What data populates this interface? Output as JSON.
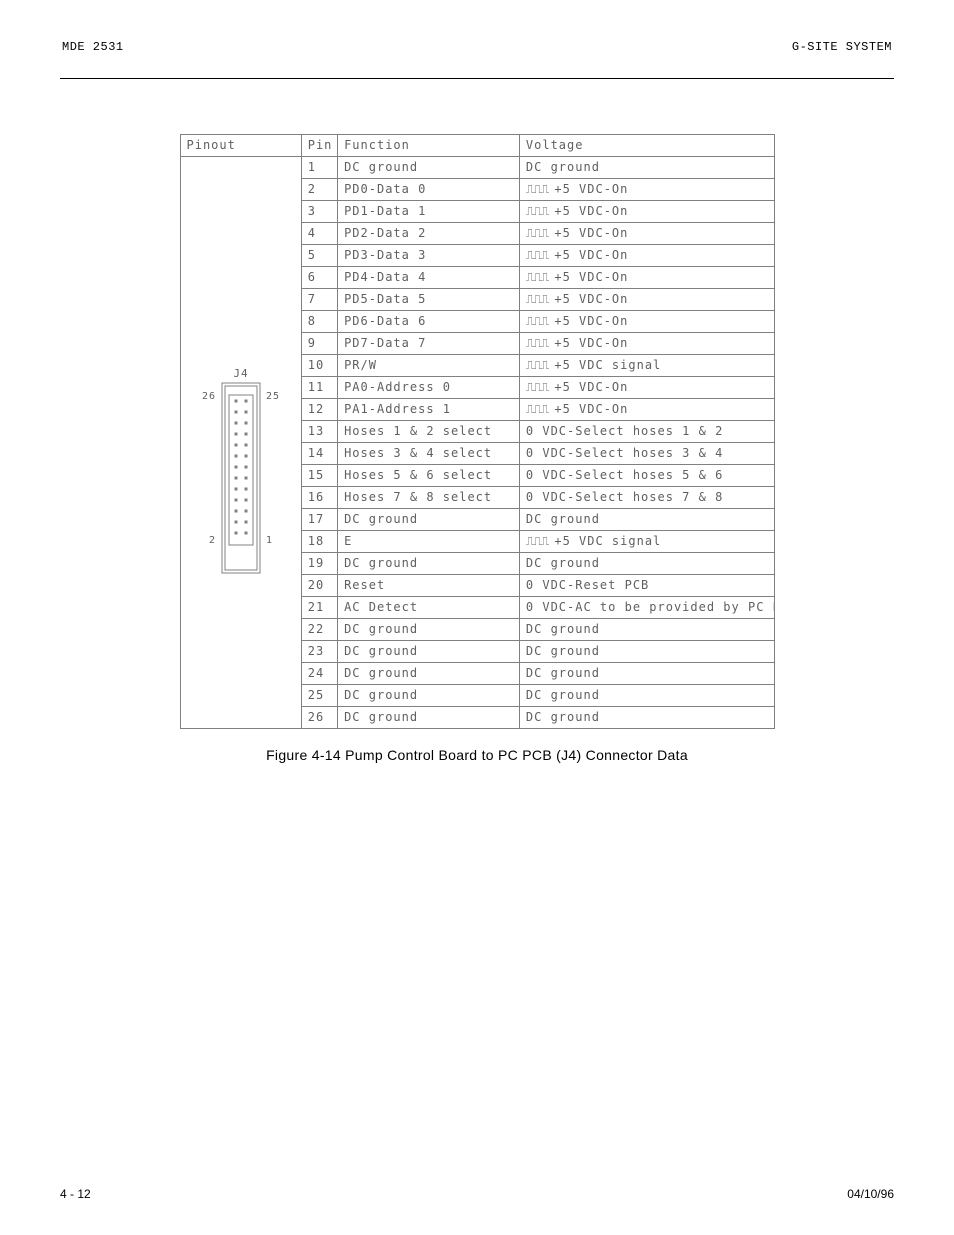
{
  "header": {
    "left": "MDE 2531",
    "right": "G-SITE SYSTEM"
  },
  "table": {
    "headers": [
      "Pinout",
      "Pin",
      "Function",
      "Voltage"
    ],
    "rows": [
      {
        "pin": "1",
        "func": "DC ground",
        "volt": "DC ground",
        "wave": ""
      },
      {
        "pin": "2",
        "func": "PD0-Data 0",
        "volt": "+5 VDC-On",
        "wave": "1"
      },
      {
        "pin": "3",
        "func": "PD1-Data 1",
        "volt": "+5 VDC-On",
        "wave": "1"
      },
      {
        "pin": "4",
        "func": "PD2-Data 2",
        "volt": "+5 VDC-On",
        "wave": "1"
      },
      {
        "pin": "5",
        "func": "PD3-Data 3",
        "volt": "+5 VDC-On",
        "wave": "1"
      },
      {
        "pin": "6",
        "func": "PD4-Data 4",
        "volt": "+5 VDC-On",
        "wave": "1"
      },
      {
        "pin": "7",
        "func": "PD5-Data 5",
        "volt": "+5 VDC-On",
        "wave": "1"
      },
      {
        "pin": "8",
        "func": "PD6-Data 6",
        "volt": "+5 VDC-On",
        "wave": "1"
      },
      {
        "pin": "9",
        "func": "PD7-Data 7",
        "volt": "+5 VDC-On",
        "wave": "1"
      },
      {
        "pin": "10",
        "func": "PR/W",
        "volt": "+5 VDC signal",
        "wave": "1"
      },
      {
        "pin": "11",
        "func": "PA0-Address 0",
        "volt": "+5 VDC-On",
        "wave": "1"
      },
      {
        "pin": "12",
        "func": "PA1-Address 1",
        "volt": "+5 VDC-On",
        "wave": "1"
      },
      {
        "pin": "13",
        "func": "Hoses 1 & 2 select",
        "volt": "0 VDC-Select hoses 1 & 2",
        "wave": ""
      },
      {
        "pin": "14",
        "func": "Hoses 3 & 4 select",
        "volt": "0 VDC-Select hoses 3 & 4",
        "wave": ""
      },
      {
        "pin": "15",
        "func": "Hoses 5 & 6 select",
        "volt": "0 VDC-Select hoses 5 & 6",
        "wave": ""
      },
      {
        "pin": "16",
        "func": "Hoses 7 & 8 select",
        "volt": "0 VDC-Select hoses 7 & 8",
        "wave": ""
      },
      {
        "pin": "17",
        "func": "DC ground",
        "volt": "DC ground",
        "wave": ""
      },
      {
        "pin": "18",
        "func": "E",
        "volt": "+5 VDC signal",
        "wave": "1"
      },
      {
        "pin": "19",
        "func": "DC ground",
        "volt": "DC ground",
        "wave": ""
      },
      {
        "pin": "20",
        "func": "Reset",
        "volt": "0 VDC-Reset PCB",
        "wave": ""
      },
      {
        "pin": "21",
        "func": "AC Detect",
        "volt": "0 VDC-AC to be provided by PC PCB",
        "wave": ""
      },
      {
        "pin": "22",
        "func": "DC ground",
        "volt": "DC ground",
        "wave": ""
      },
      {
        "pin": "23",
        "func": "DC ground",
        "volt": "DC ground",
        "wave": ""
      },
      {
        "pin": "24",
        "func": "DC ground",
        "volt": "DC ground",
        "wave": ""
      },
      {
        "pin": "25",
        "func": "DC ground",
        "volt": "DC ground",
        "wave": ""
      },
      {
        "pin": "26",
        "func": "DC ground",
        "volt": "DC ground",
        "wave": ""
      }
    ]
  },
  "connector": {
    "label": "J4",
    "top_left": "26",
    "top_right": "25",
    "bot_left": "2",
    "bot_right": "1"
  },
  "caption": "Figure 4-14  Pump Control Board to PC PCB (J4) Connector Data",
  "footer": {
    "left": "4 - 12",
    "right": "04/10/96"
  },
  "style": {
    "border_color": "#808080",
    "text_color": "#606060",
    "waveform_glyph": "⎍⎍⎍"
  }
}
